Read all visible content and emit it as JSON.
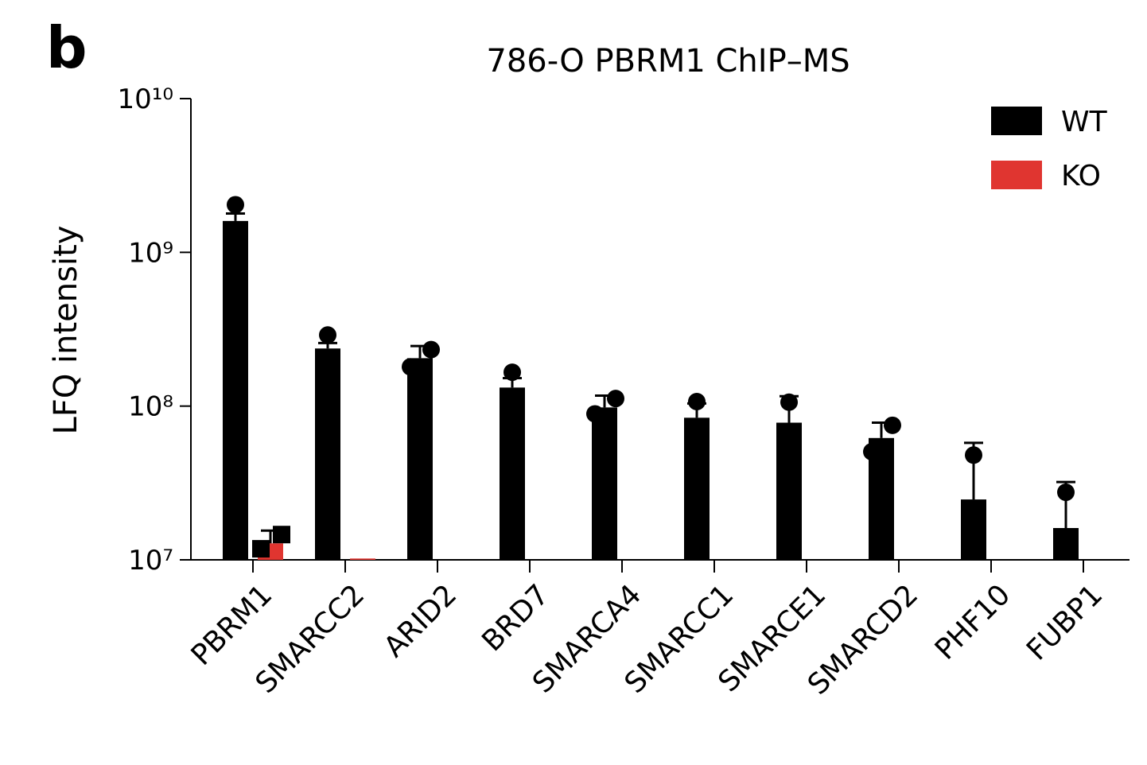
{
  "panel_label": "b",
  "chart_data": {
    "type": "bar",
    "title": "786-O PBRM1 ChIP–MS",
    "y_label": "LFQ intensity",
    "log_scale": true,
    "legend_position": "upper right",
    "categories": [
      "PBRM1",
      "SMARCC2",
      "ARID2",
      "BRD7",
      "SMARCA4",
      "SMARCC1",
      "SMARCE1",
      "SMARCD2",
      "PHF10",
      "FUBP1"
    ],
    "series": [
      {
        "name": "WT",
        "color": "#000000",
        "marker": "circle",
        "values": [
          1600000000,
          237000000,
          205000000,
          132000000,
          98000000,
          84000000,
          78000000,
          62000000,
          24700000,
          16100000
        ],
        "errors": [
          190000000,
          20000000,
          41000000,
          20000000,
          19000000,
          20000000,
          38000000,
          16000000,
          33000000,
          16000000
        ],
        "points": [
          [
            2040000000
          ],
          [
            290000000
          ],
          [
            180000000,
            233000000
          ],
          [
            166000000
          ],
          [
            89000000,
            112000000
          ],
          [
            107000000
          ],
          [
            106000000
          ],
          [
            50500000,
            75000000
          ],
          [
            48000000
          ],
          [
            27500000
          ]
        ]
      },
      {
        "name": "KO",
        "color": "#e03530",
        "marker": "square",
        "values": [
          12800000,
          10200000,
          null,
          null,
          null,
          null,
          null,
          null,
          null,
          null
        ],
        "errors": [
          2700000,
          null,
          null,
          null,
          null,
          null,
          null,
          null,
          null,
          null
        ],
        "points": [
          [
            11800000,
            14600000
          ],
          [],
          [],
          [],
          [],
          [],
          [],
          [],
          [],
          []
        ]
      }
    ],
    "ylim": [
      10000000,
      10000000000
    ],
    "yticks": [
      {
        "value": 10000000,
        "label": "10⁷"
      },
      {
        "value": 100000000,
        "label": "10⁸"
      },
      {
        "value": 1000000000,
        "label": "10⁹"
      },
      {
        "value": 10000000000,
        "label": "10¹⁰"
      }
    ]
  }
}
